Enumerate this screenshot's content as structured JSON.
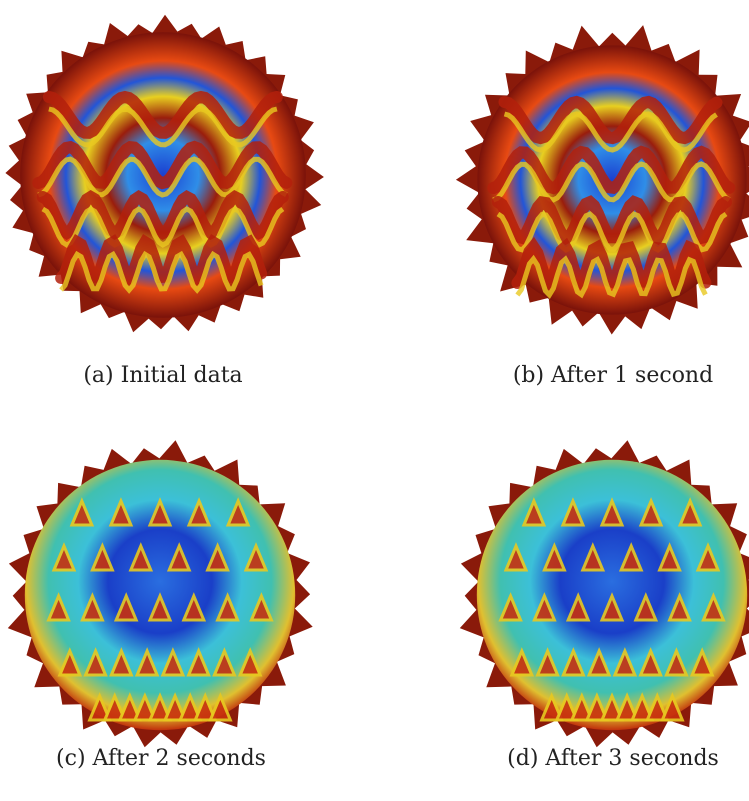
{
  "figure": {
    "panels": [
      {
        "caption": "(a) Initial data"
      },
      {
        "caption": "(b) After 1 second"
      },
      {
        "caption": "(c) After 2 seconds"
      },
      {
        "caption": "(d) After 3 seconds"
      }
    ]
  }
}
